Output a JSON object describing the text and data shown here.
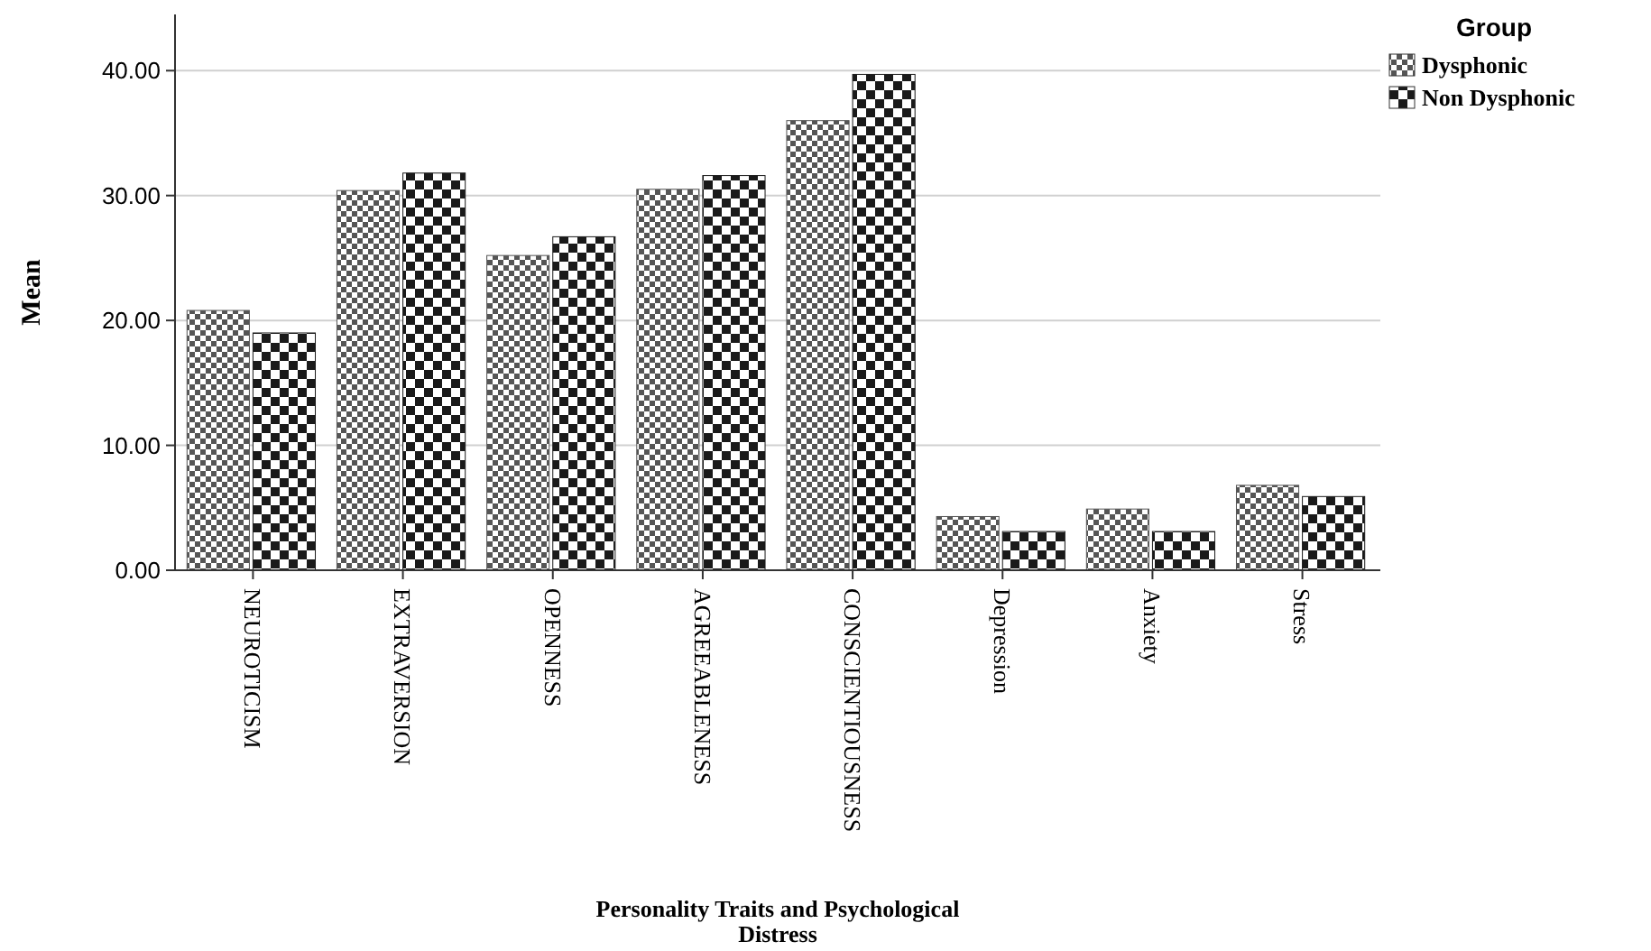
{
  "chart_data": {
    "type": "bar",
    "xlabel": "Personality Traits and Psychological Distress",
    "ylabel": "Mean",
    "legend_title": "Group",
    "legend": "top right",
    "grid": "y",
    "categories": [
      "NEUROTICISM",
      "EXTRAVERSION",
      "OPENNESS",
      "AGREEABLENESS",
      "CONSCIENTIOUSNESS",
      "Depression",
      "Anxiety",
      "Stress"
    ],
    "series": [
      {
        "name": "Dysphonic",
        "color": "#555555",
        "values": [
          20.8,
          30.4,
          25.2,
          30.5,
          36.0,
          4.3,
          4.9,
          6.8
        ]
      },
      {
        "name": "Non Dysphonic",
        "color": "#1a1a1a",
        "values": [
          19.0,
          31.8,
          26.7,
          31.6,
          39.7,
          3.1,
          3.1,
          5.9
        ]
      }
    ],
    "ylim": [
      0,
      44.5
    ],
    "yticks": [
      {
        "value": 0,
        "label": "0.00"
      },
      {
        "value": 10,
        "label": "10.00"
      },
      {
        "value": 20,
        "label": "20.00"
      },
      {
        "value": 30,
        "label": "30.00"
      },
      {
        "value": 40,
        "label": "40.00"
      }
    ]
  }
}
